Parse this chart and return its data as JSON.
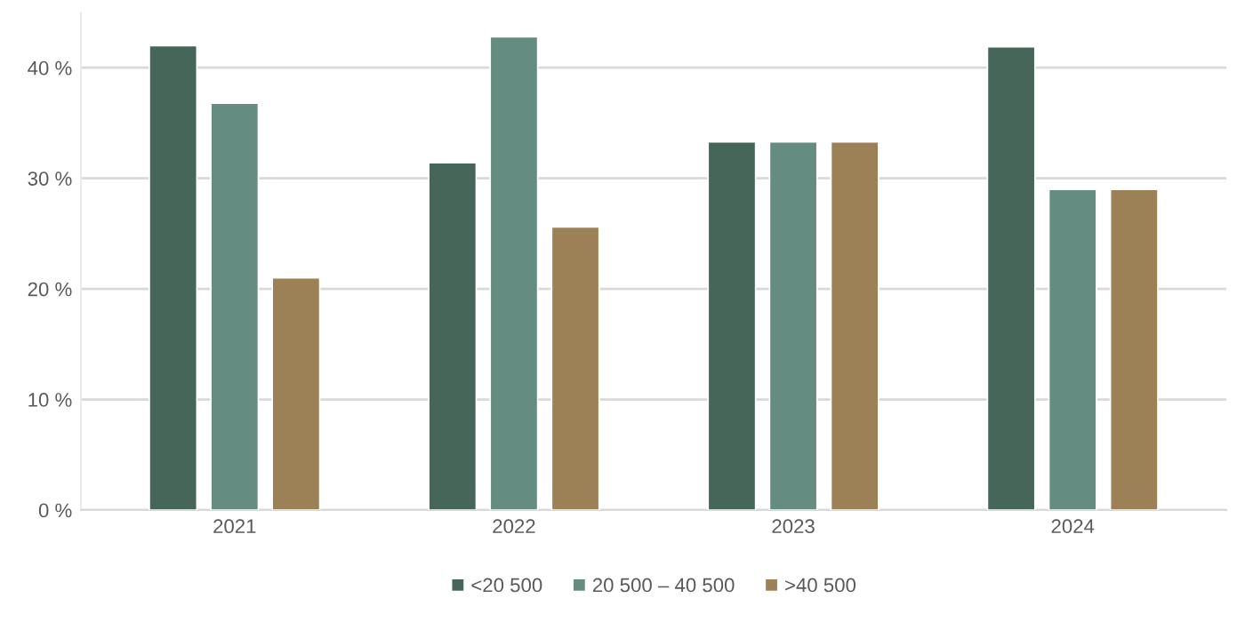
{
  "chart_data": {
    "type": "bar",
    "categories": [
      "2021",
      "2022",
      "2023",
      "2024"
    ],
    "series": [
      {
        "name": "<20 500",
        "color": "#46665a",
        "values": [
          42.0,
          31.4,
          33.3,
          41.9
        ]
      },
      {
        "name": "20 500 – 40 500",
        "color": "#648c80",
        "values": [
          36.8,
          42.8,
          33.3,
          29.0
        ]
      },
      {
        "name": ">40 500",
        "color": "#9c8056",
        "values": [
          21.0,
          25.6,
          33.3,
          29.0
        ]
      }
    ],
    "ylim": [
      0,
      45
    ],
    "yticks": [
      {
        "value": 0,
        "label": "0 %"
      },
      {
        "value": 10,
        "label": "10 %"
      },
      {
        "value": 20,
        "label": "20 %"
      },
      {
        "value": 30,
        "label": "30 %"
      },
      {
        "value": 40,
        "label": "40 %"
      }
    ],
    "grid": "y",
    "legend": "bottom"
  }
}
